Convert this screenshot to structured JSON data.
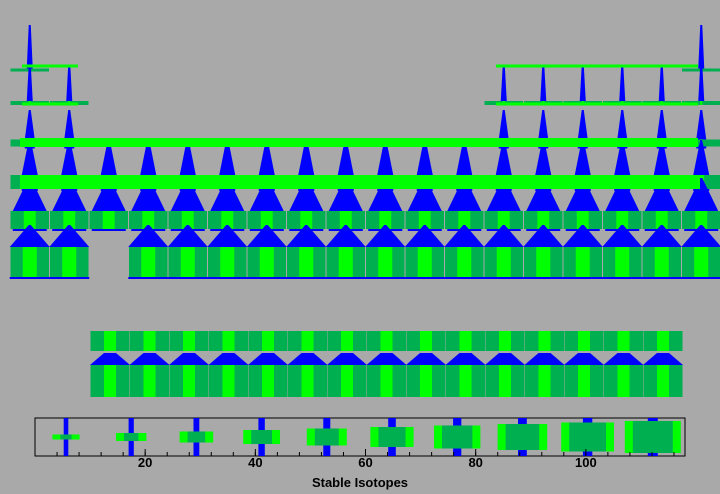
{
  "chart_data": {
    "type": "other",
    "title": "",
    "xlabel": "Stable Isotopes",
    "x_ticks": [
      20,
      40,
      60,
      80,
      100
    ],
    "legend_isotope_counts": [
      1,
      2,
      3,
      4,
      5,
      6,
      7,
      8,
      9,
      10
    ],
    "colors": {
      "background": "#a9a9a9",
      "spindle": "#0000ff",
      "bar_light": "#00ff00",
      "bar_dark": "#00b050"
    }
  }
}
